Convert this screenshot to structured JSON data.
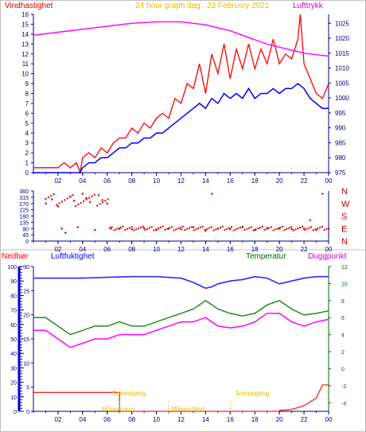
{
  "header": {
    "left_label": "Vindhastighet",
    "center_label": "24 hour graph dag : 23 Februsry 2021",
    "right_label": "Lufttrykk"
  },
  "colors": {
    "frame": "#c0c0c0",
    "grid": "#000080",
    "wind_speed": "#ff0000",
    "wind_avg": "#0000ff",
    "pressure": "#ff00ff",
    "wind_dir": "#dd0000",
    "humidity": "#2a2aff",
    "temperature": "#228b22",
    "dewpoint": "#ff00ff",
    "rain": "#ff2020",
    "header_center": "#e0c000",
    "label_rain": "#ff0000",
    "label_humidity": "#0000ff",
    "label_temp": "#006400",
    "label_dew": "#cc00cc",
    "annotation": "#e0c000"
  },
  "chart_data": [
    {
      "type": "line",
      "id": "wind_pressure",
      "ylabel": "Vindhastighet",
      "y2label": "Lufttrykk",
      "ylim": [
        0,
        16
      ],
      "y2lim": [
        975,
        1028
      ],
      "yticks": [
        "0",
        "1",
        "2",
        "3",
        "4",
        "5",
        "6",
        "7",
        "8",
        "9",
        "10",
        "11",
        "12",
        "13",
        "14",
        "15",
        "16"
      ],
      "y2ticks": [
        "975",
        "980",
        "985",
        "990",
        "995",
        "1000",
        "1005",
        "1010",
        "1015",
        "1020",
        "1025"
      ],
      "xticks": [
        "02",
        "04",
        "06",
        "08",
        "10",
        "12",
        "14",
        "16",
        "18",
        "20",
        "22",
        "00"
      ],
      "series": [
        {
          "key": "gust",
          "points": [
            [
              0,
              0.5
            ],
            [
              1,
              0.5
            ],
            [
              2,
              0.5
            ],
            [
              2.5,
              1
            ],
            [
              3,
              0.5
            ],
            [
              3.5,
              1
            ],
            [
              3.8,
              0
            ],
            [
              4,
              1.5
            ],
            [
              4.5,
              2
            ],
            [
              5,
              1.5
            ],
            [
              5.5,
              2.5
            ],
            [
              6,
              2
            ],
            [
              6.5,
              3
            ],
            [
              7,
              3.5
            ],
            [
              7.5,
              3.5
            ],
            [
              8,
              4.5
            ],
            [
              8.5,
              4
            ],
            [
              9,
              5
            ],
            [
              9.5,
              4.5
            ],
            [
              10,
              5.5
            ],
            [
              10.5,
              6
            ],
            [
              11,
              5.5
            ],
            [
              11.5,
              7.5
            ],
            [
              12,
              7
            ],
            [
              12.5,
              9
            ],
            [
              13,
              8.5
            ],
            [
              13.5,
              11
            ],
            [
              14,
              8
            ],
            [
              14.5,
              12
            ],
            [
              15,
              10
            ],
            [
              15.5,
              13
            ],
            [
              16,
              9.5
            ],
            [
              16.5,
              12.5
            ],
            [
              17,
              10.5
            ],
            [
              17.5,
              13
            ],
            [
              18,
              10.5
            ],
            [
              18.5,
              12.5
            ],
            [
              19,
              11
            ],
            [
              19.5,
              13.5
            ],
            [
              20,
              11
            ],
            [
              20.5,
              12
            ],
            [
              21,
              11.5
            ],
            [
              21.5,
              13.5
            ],
            [
              21.7,
              16
            ],
            [
              22,
              11
            ],
            [
              22.5,
              9.5
            ],
            [
              23,
              8
            ],
            [
              23.5,
              7.5
            ],
            [
              24,
              9
            ]
          ]
        },
        {
          "key": "wind",
          "points": [
            [
              0,
              0
            ],
            [
              1,
              0
            ],
            [
              2,
              0
            ],
            [
              3,
              0
            ],
            [
              3.8,
              0
            ],
            [
              4,
              0.5
            ],
            [
              4.5,
              1
            ],
            [
              5,
              1
            ],
            [
              5.5,
              1.5
            ],
            [
              6,
              1.5
            ],
            [
              6.5,
              2
            ],
            [
              7,
              2.5
            ],
            [
              7.5,
              2.5
            ],
            [
              8,
              3
            ],
            [
              8.5,
              3
            ],
            [
              9,
              3.5
            ],
            [
              9.5,
              3.5
            ],
            [
              10,
              4
            ],
            [
              10.5,
              4
            ],
            [
              11,
              4.5
            ],
            [
              11.5,
              5
            ],
            [
              12,
              5.5
            ],
            [
              12.5,
              6
            ],
            [
              13,
              6.5
            ],
            [
              13.5,
              7
            ],
            [
              14,
              6.5
            ],
            [
              14.5,
              7.5
            ],
            [
              15,
              7
            ],
            [
              15.5,
              8
            ],
            [
              16,
              7.5
            ],
            [
              16.5,
              8
            ],
            [
              17,
              7.5
            ],
            [
              17.5,
              8.5
            ],
            [
              18,
              7.5
            ],
            [
              18.5,
              8
            ],
            [
              19,
              8
            ],
            [
              19.5,
              8.5
            ],
            [
              20,
              8
            ],
            [
              20.5,
              8.5
            ],
            [
              21,
              8.5
            ],
            [
              21.5,
              9
            ],
            [
              22,
              8.5
            ],
            [
              22.5,
              7.5
            ],
            [
              23,
              7
            ],
            [
              23.5,
              6.5
            ],
            [
              24,
              6.5
            ]
          ]
        },
        {
          "key": "pressure",
          "points": [
            [
              0,
              1021
            ],
            [
              2,
              1022
            ],
            [
              4,
              1023
            ],
            [
              6,
              1024
            ],
            [
              8,
              1025
            ],
            [
              10,
              1025.5
            ],
            [
              12,
              1025.5
            ],
            [
              13,
              1025
            ],
            [
              14,
              1024.5
            ],
            [
              15,
              1023.5
            ],
            [
              16,
              1022.5
            ],
            [
              17,
              1021
            ],
            [
              18,
              1019.5
            ],
            [
              19,
              1018
            ],
            [
              20,
              1017
            ],
            [
              21,
              1016
            ],
            [
              22,
              1015
            ],
            [
              23,
              1014.5
            ],
            [
              24,
              1014
            ]
          ]
        }
      ]
    },
    {
      "type": "scatter",
      "id": "wind_direction",
      "ylim": [
        0,
        360
      ],
      "yticks": [
        "0",
        "45",
        "90",
        "135",
        "180",
        "225",
        "270",
        "315",
        "360"
      ],
      "compass": [
        "N",
        "W",
        "S",
        "E",
        "N"
      ],
      "xticks": [
        "02",
        "04",
        "06",
        "08",
        "10",
        "12",
        "14",
        "16",
        "18",
        "20",
        "22",
        "00"
      ],
      "series": [
        {
          "key": "dir",
          "points": [
            [
              1,
              270
            ],
            [
              1.5,
              300
            ],
            [
              2,
              250
            ],
            [
              2.3,
              90
            ],
            [
              2.6,
              60
            ],
            [
              3,
              320
            ],
            [
              3.3,
              290
            ],
            [
              3.6,
              100
            ],
            [
              4,
              340
            ],
            [
              4.3,
              310
            ],
            [
              4.6,
              280
            ],
            [
              5,
              80
            ],
            [
              5.3,
              330
            ],
            [
              5.6,
              295
            ],
            [
              6,
              270
            ],
            [
              6.3,
              90
            ],
            [
              7,
              90
            ],
            [
              8,
              85
            ],
            [
              9,
              95
            ],
            [
              10,
              80
            ],
            [
              11,
              90
            ],
            [
              12,
              85
            ],
            [
              13,
              100
            ],
            [
              14,
              75
            ],
            [
              14.5,
              340
            ],
            [
              15,
              90
            ],
            [
              16,
              85
            ],
            [
              17,
              100
            ],
            [
              18,
              80
            ],
            [
              19,
              95
            ],
            [
              20,
              90
            ],
            [
              21,
              85
            ],
            [
              22,
              90
            ],
            [
              22.5,
              150
            ],
            [
              23,
              80
            ],
            [
              23.5,
              340
            ],
            [
              24,
              90
            ]
          ]
        }
      ]
    },
    {
      "type": "line",
      "id": "humidity_temp_rain",
      "y1label": "Nedbør",
      "y2label": "Luftfuktighet",
      "y3label": "Temperatur",
      "y4label": "Duggpunkt",
      "rain_yticks": [
        "0",
        "10",
        "20",
        "30",
        "40",
        "50",
        "60",
        "70",
        "80",
        "90",
        "100"
      ],
      "hum_yticks": [
        "0",
        "5",
        "10",
        "15",
        "20",
        "25",
        "30"
      ],
      "temp_yticks": [
        "-4",
        "-2",
        "0",
        "2",
        "4",
        "6",
        "8",
        "10",
        "12"
      ],
      "xticks": [
        "02",
        "04",
        "06",
        "08",
        "10",
        "12",
        "14",
        "16",
        "18",
        "20",
        "22",
        "00"
      ],
      "series": [
        {
          "key": "humidity",
          "points": [
            [
              0,
              92
            ],
            [
              4,
              92
            ],
            [
              6,
              92.5
            ],
            [
              8,
              93
            ],
            [
              10,
              93
            ],
            [
              12,
              92
            ],
            [
              13,
              89
            ],
            [
              14,
              85
            ],
            [
              14.5,
              86
            ],
            [
              15,
              88
            ],
            [
              16,
              90
            ],
            [
              17,
              91
            ],
            [
              18,
              93
            ],
            [
              19,
              92
            ],
            [
              20,
              88
            ],
            [
              21,
              90
            ],
            [
              22,
              92
            ],
            [
              23,
              93
            ],
            [
              24,
              93
            ]
          ]
        },
        {
          "key": "temperature",
          "points": [
            [
              0,
              6
            ],
            [
              1,
              6
            ],
            [
              2,
              5
            ],
            [
              3,
              4
            ],
            [
              4,
              4.5
            ],
            [
              5,
              5
            ],
            [
              6,
              5
            ],
            [
              7,
              5.5
            ],
            [
              8,
              5
            ],
            [
              9,
              5
            ],
            [
              10,
              5.5
            ],
            [
              11,
              6
            ],
            [
              12,
              6.5
            ],
            [
              13,
              7
            ],
            [
              14,
              8
            ],
            [
              15,
              7
            ],
            [
              16,
              6.5
            ],
            [
              17,
              6.2
            ],
            [
              18,
              6.5
            ],
            [
              19,
              7.5
            ],
            [
              20,
              8
            ],
            [
              21,
              7
            ],
            [
              22,
              6.3
            ],
            [
              23,
              6.5
            ],
            [
              24,
              6.8
            ]
          ]
        },
        {
          "key": "dewpoint",
          "points": [
            [
              0,
              4.5
            ],
            [
              1,
              4.5
            ],
            [
              2,
              3.5
            ],
            [
              3,
              2.5
            ],
            [
              4,
              3
            ],
            [
              5,
              3.5
            ],
            [
              6,
              3.5
            ],
            [
              7,
              4
            ],
            [
              8,
              4
            ],
            [
              9,
              4
            ],
            [
              10,
              4.5
            ],
            [
              11,
              5
            ],
            [
              12,
              5.5
            ],
            [
              13,
              5.5
            ],
            [
              14,
              6
            ],
            [
              15,
              5
            ],
            [
              16,
              4.8
            ],
            [
              17,
              5
            ],
            [
              18,
              5.5
            ],
            [
              19,
              6.5
            ],
            [
              20,
              6.5
            ],
            [
              21,
              5.5
            ],
            [
              22,
              5
            ],
            [
              23,
              5.5
            ],
            [
              24,
              5.8
            ]
          ]
        },
        {
          "key": "rain",
          "points": [
            [
              0,
              10
            ],
            [
              7,
              10
            ],
            [
              7,
              0
            ],
            [
              20,
              0
            ],
            [
              20,
              0.5
            ],
            [
              21,
              1
            ],
            [
              22,
              3
            ],
            [
              23,
              7
            ],
            [
              23.5,
              14
            ],
            [
              24,
              14
            ]
          ]
        }
      ],
      "annotations": [
        {
          "text": "Solnedgang"
        },
        {
          "text": "Månen opp"
        },
        {
          "text": "Månen Ned"
        },
        {
          "text": "Soloppgang"
        }
      ]
    }
  ]
}
